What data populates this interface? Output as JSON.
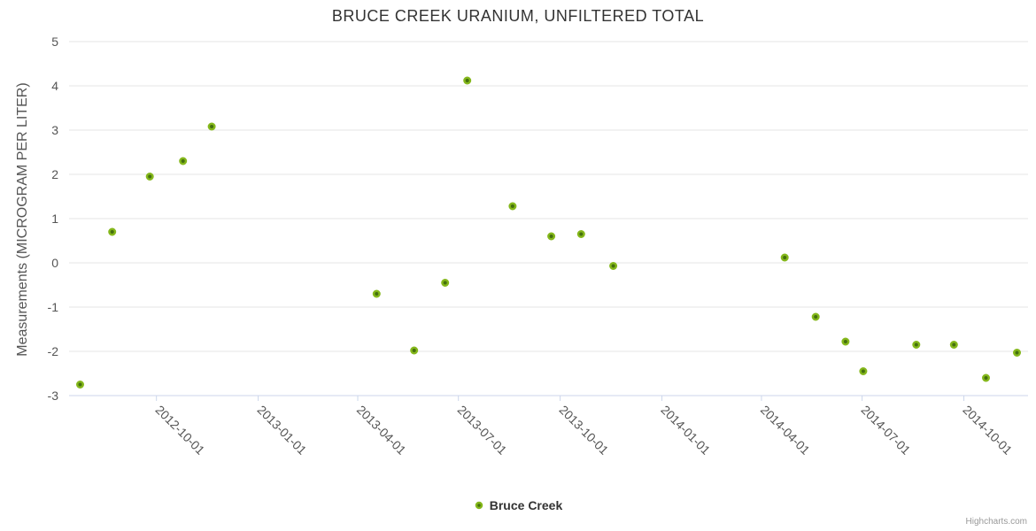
{
  "title": "BRUCE CREEK URANIUM, UNFILTERED TOTAL",
  "legend": {
    "items": [
      {
        "label": "Bruce Creek"
      }
    ]
  },
  "credits": "Highcharts.com",
  "colors": {
    "marker_ring": "#84b71b",
    "marker_core": "#44700e",
    "grid_line": "#e6e6e6",
    "axis_line": "#ccd6eb",
    "title_text": "#333333",
    "tick_text": "#555555",
    "credits_text": "#999999"
  },
  "chart_data": {
    "type": "scatter",
    "title": "BRUCE CREEK URANIUM, UNFILTERED TOTAL",
    "xlabel": "",
    "ylabel": "Measurements (MICROGRAM PER LITER)",
    "ylim": [
      -3,
      5
    ],
    "y_ticks": [
      5,
      4,
      3,
      2,
      1,
      0,
      -1,
      -2,
      -3
    ],
    "x_range": [
      "2012-07-14",
      "2014-11-28"
    ],
    "x_ticks": [
      "2012-10-01",
      "2013-01-01",
      "2013-04-01",
      "2013-07-01",
      "2013-10-01",
      "2014-01-01",
      "2014-04-01",
      "2014-07-01",
      "2014-10-01"
    ],
    "grid": "horizontal",
    "legend_position": "bottom",
    "series": [
      {
        "name": "Bruce Creek",
        "points": [
          {
            "date": "2012-07-24",
            "value": -2.75
          },
          {
            "date": "2012-08-22",
            "value": 0.7
          },
          {
            "date": "2012-09-25",
            "value": 1.95
          },
          {
            "date": "2012-10-25",
            "value": 2.3
          },
          {
            "date": "2012-11-20",
            "value": 3.08
          },
          {
            "date": "2013-04-18",
            "value": -0.7
          },
          {
            "date": "2013-05-22",
            "value": -1.98
          },
          {
            "date": "2013-06-19",
            "value": -0.45
          },
          {
            "date": "2013-07-09",
            "value": 4.12
          },
          {
            "date": "2013-08-19",
            "value": 1.28
          },
          {
            "date": "2013-09-23",
            "value": 0.6
          },
          {
            "date": "2013-10-20",
            "value": 0.65
          },
          {
            "date": "2013-11-18",
            "value": -0.07
          },
          {
            "date": "2014-04-22",
            "value": 0.12
          },
          {
            "date": "2014-05-20",
            "value": -1.22
          },
          {
            "date": "2014-06-16",
            "value": -1.78
          },
          {
            "date": "2014-07-02",
            "value": -2.45
          },
          {
            "date": "2014-08-19",
            "value": -1.85
          },
          {
            "date": "2014-09-22",
            "value": -1.85
          },
          {
            "date": "2014-10-21",
            "value": -2.6
          },
          {
            "date": "2014-11-18",
            "value": -2.03
          }
        ]
      }
    ]
  }
}
